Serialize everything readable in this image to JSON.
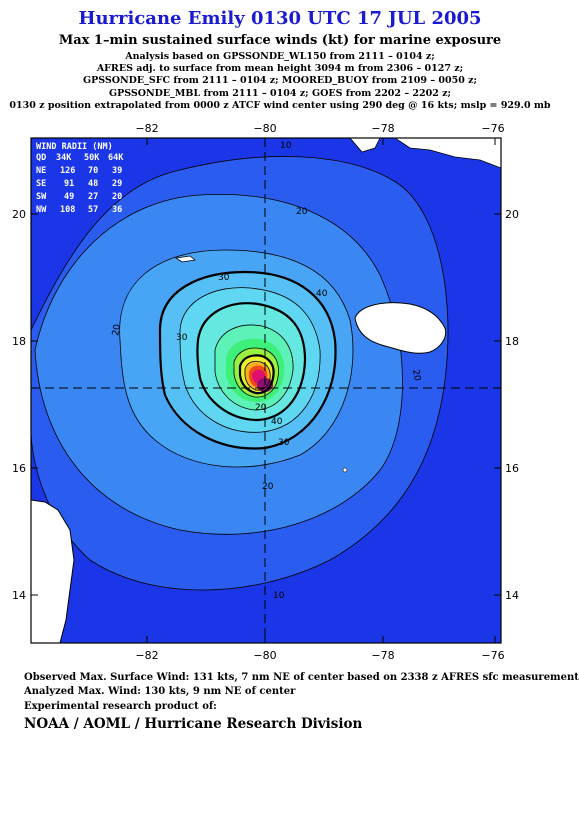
{
  "header": {
    "title": "Hurricane Emily 0130 UTC 17 JUL 2005",
    "subtitle": "Max 1–min sustained surface winds (kt) for marine exposure",
    "analysis_lines": [
      "Analysis based on  GPSSONDE_WL150 from 2111 – 0104 z;",
      "AFRES adj. to surface from mean height 3094 m from 2306 – 0127 z;",
      "GPSSONDE_SFC from 2111 – 0104 z;  MOORED_BUOY from 2109 – 0050 z;",
      "GPSSONDE_MBL from 2111 – 0104 z;  GOES from 2202 – 2202 z;",
      "0130 z position extrapolated from 0000 z ATCF wind center using 290 deg @ 16 kts; mslp = 929.0 mb"
    ]
  },
  "map": {
    "lon_ticks": [
      "−82",
      "−80",
      "−78",
      "−76"
    ],
    "lat_ticks": [
      "20",
      "18",
      "16",
      "14"
    ],
    "lon_range": [
      -83.8,
      -75.8
    ],
    "lat_range": [
      13.3,
      21.2
    ],
    "center": {
      "lon": -80.0,
      "lat": 17.2
    },
    "ocean_color": "#1a36e6",
    "land_color": "#ffffff",
    "contour_labels": [
      "10",
      "20",
      "20",
      "20",
      "20",
      "30",
      "30",
      "30",
      "40",
      "40",
      "20",
      "10"
    ]
  },
  "wind_radii": {
    "title": "WIND RADII (NM)",
    "header": [
      "QD",
      "34K",
      "50K",
      "64K"
    ],
    "rows": [
      [
        "NE",
        "126",
        "70",
        "39"
      ],
      [
        "SE",
        "91",
        "48",
        "29"
      ],
      [
        "SW",
        "49",
        "27",
        "20"
      ],
      [
        "NW",
        "108",
        "57",
        "36"
      ]
    ]
  },
  "footer": {
    "observed": "Observed Max. Surface Wind: 131 kts, 7 nm NE of center based on 2338 z AFRES sfc measurement",
    "analyzed": "Analyzed Max. Wind: 130 kts, 9 nm NE of center",
    "product": "Experimental research product of:",
    "org": "NOAA / AOML / Hurricane Research Division"
  }
}
